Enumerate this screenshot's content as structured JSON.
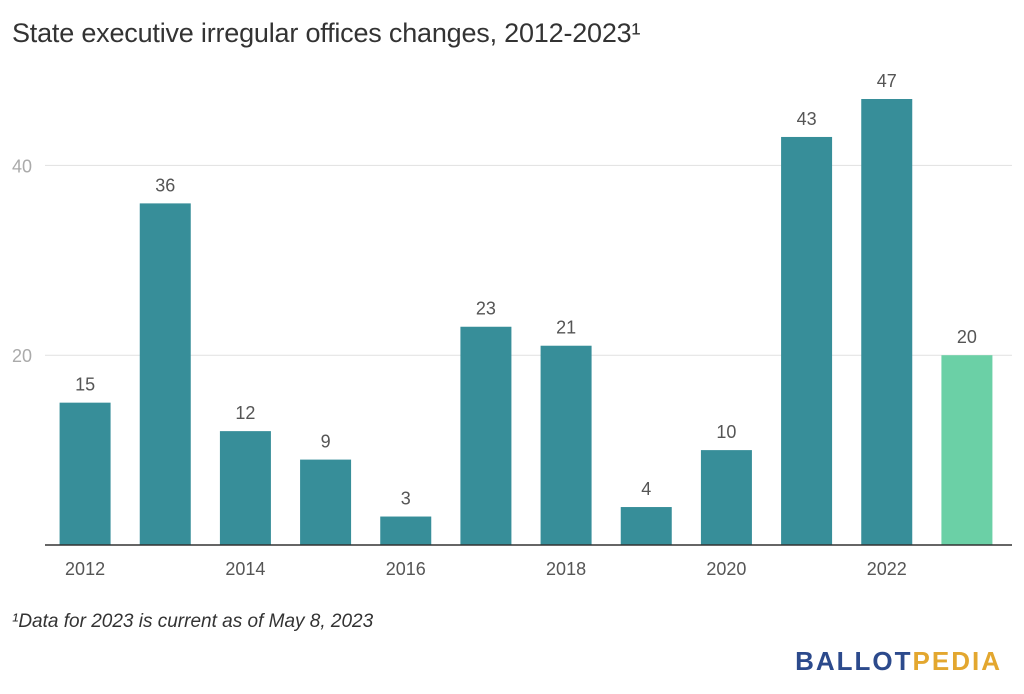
{
  "title": "State executive irregular offices changes, 2012-2023¹",
  "footnote": "¹Data for 2023 is current as of May 8, 2023",
  "logo": {
    "part1": "BALLOT",
    "part2": "PEDIA"
  },
  "colors": {
    "bar": "#378e99",
    "highlight": "#6bd0a6",
    "grid": "#e1e1e1",
    "axis": "#333333",
    "tick": "#aaaaaa",
    "label": "#555555"
  },
  "chart_data": {
    "type": "bar",
    "categories": [
      "2012",
      "2013",
      "2014",
      "2015",
      "2016",
      "2017",
      "2018",
      "2019",
      "2020",
      "2021",
      "2022",
      "2023"
    ],
    "values": [
      15,
      36,
      12,
      9,
      3,
      23,
      21,
      4,
      10,
      43,
      47,
      20
    ],
    "x_tick_labels": [
      "2012",
      "2014",
      "2016",
      "2018",
      "2020",
      "2022"
    ],
    "y_ticks": [
      20,
      40
    ],
    "ylim": [
      0,
      47
    ],
    "highlight_category": "2023",
    "data_labels": true,
    "grid": true,
    "title": "State executive irregular offices changes, 2012-2023¹",
    "xlabel": "",
    "ylabel": ""
  }
}
